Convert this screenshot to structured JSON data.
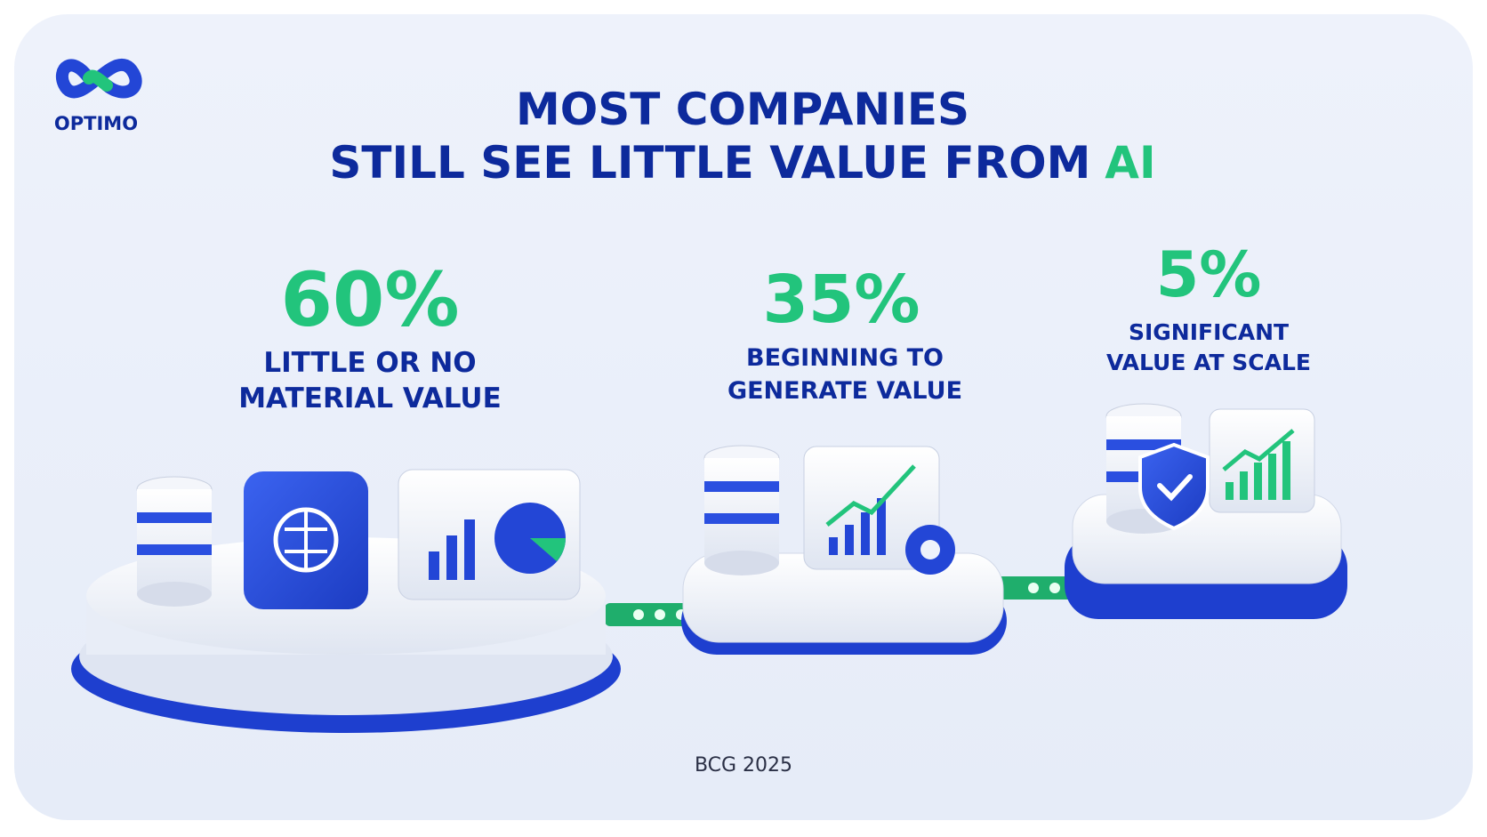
{
  "logo": {
    "name": "OPTIMO"
  },
  "title": {
    "line1": "MOST COMPANIES",
    "line2": "STILL SEE LITTLE VALUE FROM",
    "highlight": "AI"
  },
  "stats": [
    {
      "value": "60%",
      "label": [
        "LITTLE OR NO",
        "MATERIAL VALUE"
      ]
    },
    {
      "value": "35%",
      "label": [
        "BEGINNING TO",
        "GENERATE VALUE"
      ]
    },
    {
      "value": "5%",
      "label": [
        "SIGNIFICANT",
        "VALUE AT SCALE"
      ]
    }
  ],
  "source": "BCG 2025"
}
